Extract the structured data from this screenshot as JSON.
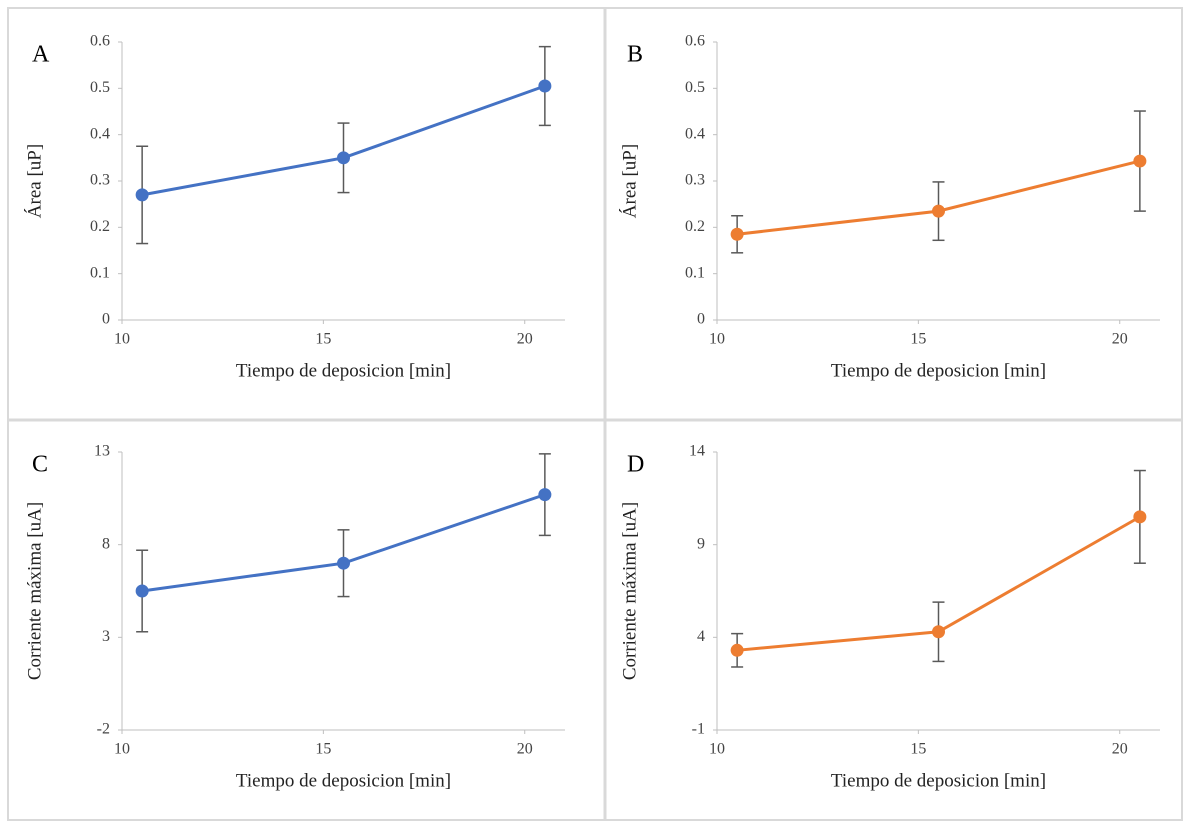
{
  "chart_data": [
    {
      "type": "line",
      "panel": "A",
      "xlabel": "Tiempo de deposicion [min]",
      "ylabel": "Área [uP]",
      "x": [
        10.5,
        15.5,
        20.5
      ],
      "xlim": [
        10,
        21
      ],
      "xticks": [
        10,
        15,
        20
      ],
      "ylim": [
        0,
        0.6
      ],
      "yticks": [
        0,
        0.1,
        0.2,
        0.3,
        0.4,
        0.5,
        0.6
      ],
      "series": [
        {
          "color": "#4472c4",
          "values": [
            0.27,
            0.35,
            0.505
          ],
          "errors": [
            0.105,
            0.075,
            0.085
          ]
        }
      ]
    },
    {
      "type": "line",
      "panel": "B",
      "xlabel": "Tiempo de deposicion [min]",
      "ylabel": "Área [uP]",
      "x": [
        10.5,
        15.5,
        20.5
      ],
      "xlim": [
        10,
        21
      ],
      "xticks": [
        10,
        15,
        20
      ],
      "ylim": [
        0,
        0.6
      ],
      "yticks": [
        0,
        0.1,
        0.2,
        0.3,
        0.4,
        0.5,
        0.6
      ],
      "series": [
        {
          "color": "#ed7d31",
          "values": [
            0.185,
            0.235,
            0.343
          ],
          "errors": [
            0.04,
            0.063,
            0.108
          ]
        }
      ]
    },
    {
      "type": "line",
      "panel": "C",
      "xlabel": "Tiempo de deposicion [min]",
      "ylabel": "Corriente máxima [uA]",
      "x": [
        10.5,
        15.5,
        20.5
      ],
      "xlim": [
        10,
        21
      ],
      "xticks": [
        10,
        15,
        20
      ],
      "ylim": [
        -2,
        13
      ],
      "yticks": [
        -2,
        3,
        8,
        13
      ],
      "series": [
        {
          "color": "#4472c4",
          "values": [
            5.5,
            7.0,
            10.7
          ],
          "errors": [
            2.2,
            1.8,
            2.2
          ]
        }
      ]
    },
    {
      "type": "line",
      "panel": "D",
      "xlabel": "Tiempo de deposicion [min]",
      "ylabel": "Corriente máxima [uA]",
      "x": [
        10.5,
        15.5,
        20.5
      ],
      "xlim": [
        10,
        21
      ],
      "xticks": [
        10,
        15,
        20
      ],
      "ylim": [
        -1,
        14
      ],
      "yticks": [
        -1,
        4,
        9,
        14
      ],
      "series": [
        {
          "color": "#ed7d31",
          "values": [
            3.3,
            4.3,
            10.5
          ],
          "errors": [
            0.9,
            1.6,
            2.5
          ]
        }
      ]
    }
  ]
}
